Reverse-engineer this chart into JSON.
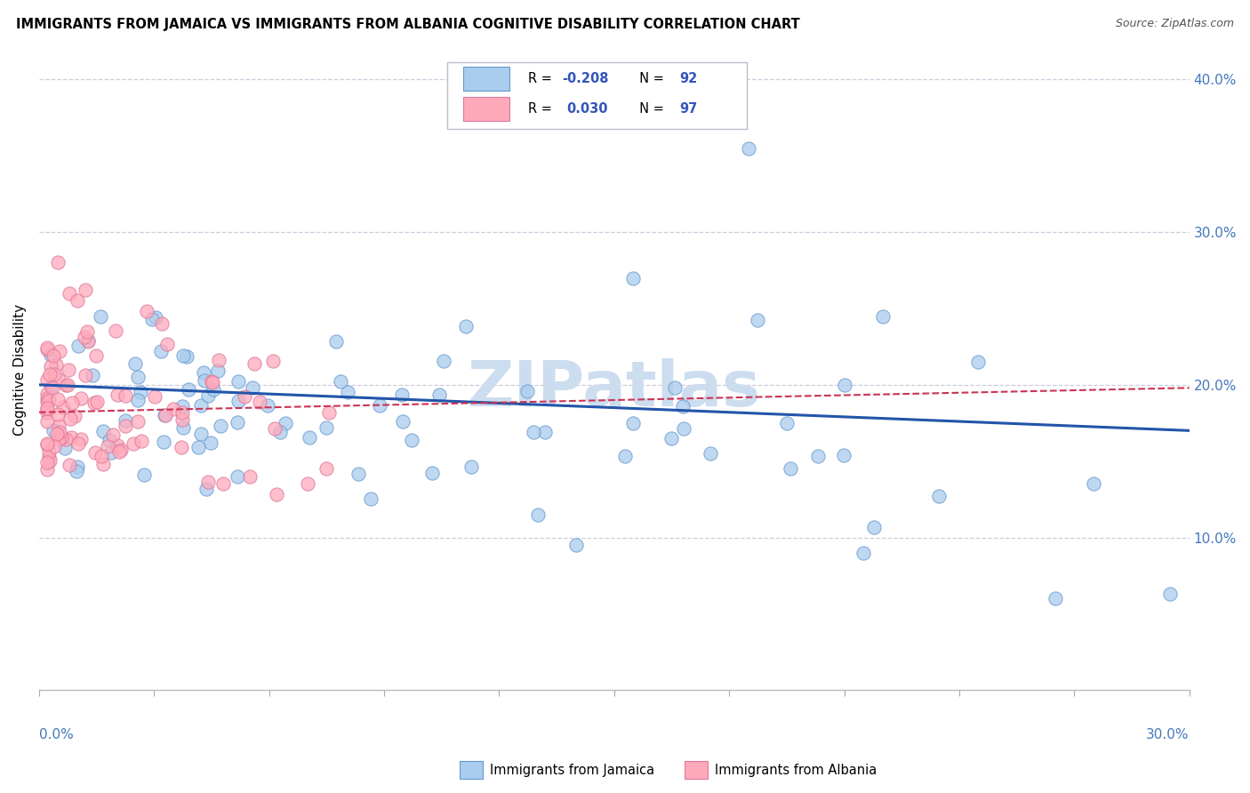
{
  "title": "IMMIGRANTS FROM JAMAICA VS IMMIGRANTS FROM ALBANIA COGNITIVE DISABILITY CORRELATION CHART",
  "source": "Source: ZipAtlas.com",
  "ylabel": "Cognitive Disability",
  "xlim": [
    0.0,
    0.3
  ],
  "ylim": [
    0.0,
    0.42
  ],
  "ytick_vals": [
    0.1,
    0.2,
    0.3,
    0.4
  ],
  "ytick_labels": [
    "10.0%",
    "20.0%",
    "30.0%",
    "40.0%"
  ],
  "jamaica_color": "#aaccee",
  "jamaica_edge": "#6699cc",
  "albania_color": "#ffaabb",
  "albania_edge": "#dd7799",
  "jamaica_trend_color": "#2255aa",
  "albania_trend_color": "#cc3355",
  "jamaica_R": -0.208,
  "jamaica_N": 92,
  "albania_R": 0.03,
  "albania_N": 97,
  "jamaica_trend_start_y": 0.2,
  "jamaica_trend_end_y": 0.17,
  "albania_trend_start_y": 0.182,
  "albania_trend_end_y": 0.198,
  "watermark": "ZIPatlas",
  "watermark_color": "#ccddef",
  "grid_color": "#ccccdd",
  "legend_label_1": "Immigrants from Jamaica",
  "legend_label_2": "Immigrants from Albania",
  "leg_text_color": "#3355bb",
  "leg_R1_pre": "R = ",
  "leg_R1_val": "-0.208",
  "leg_N1": "N = 92",
  "leg_R2_pre": "R =  ",
  "leg_R2_val": "0.030",
  "leg_N2": "N = 97"
}
